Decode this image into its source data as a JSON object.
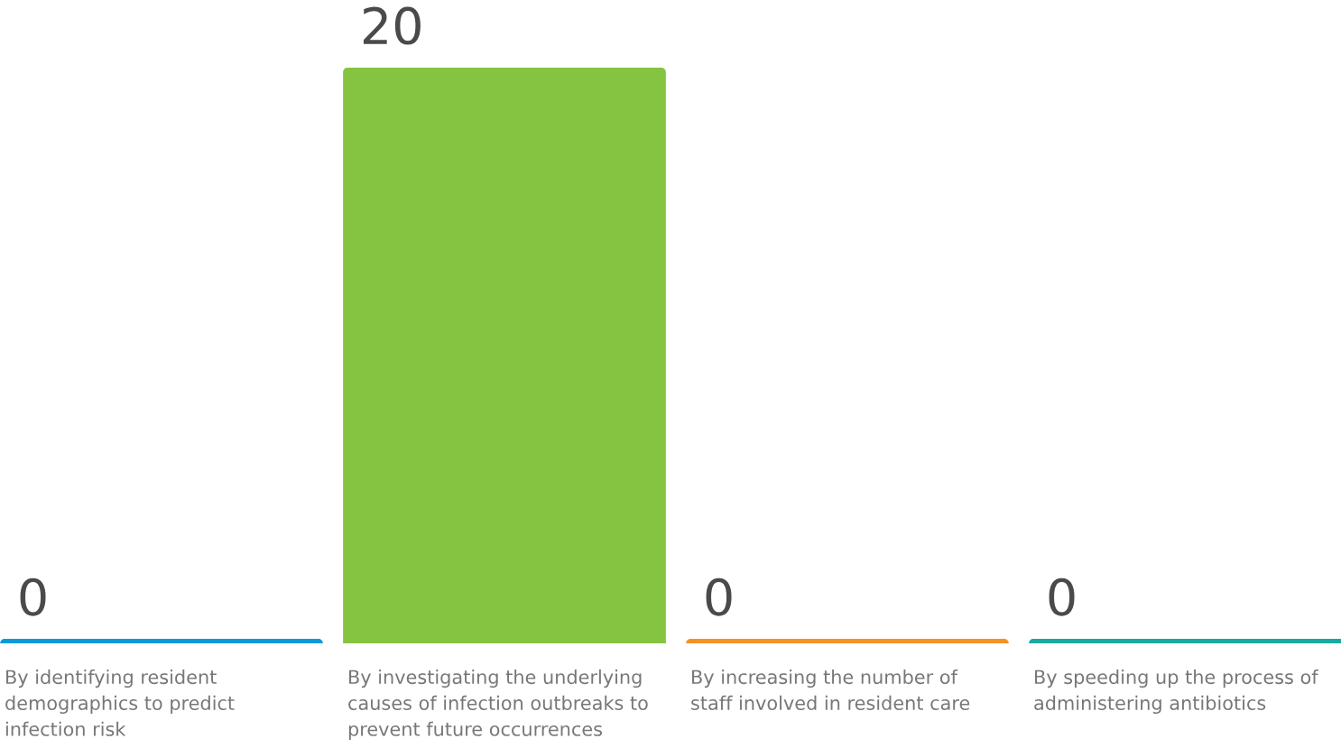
{
  "chart_data": {
    "type": "bar",
    "categories": [
      "By identifying resident demographics to predict infection risk",
      "By investigating the underlying causes of infection outbreaks to prevent future occurrences",
      "By increasing the number of staff involved in resident care",
      "By speeding up the process of administering antibiotics"
    ],
    "values": [
      0,
      20,
      0,
      0
    ],
    "colors": [
      "#0a9ad8",
      "#84c441",
      "#f39323",
      "#16aaa0"
    ],
    "data_labels": true
  }
}
